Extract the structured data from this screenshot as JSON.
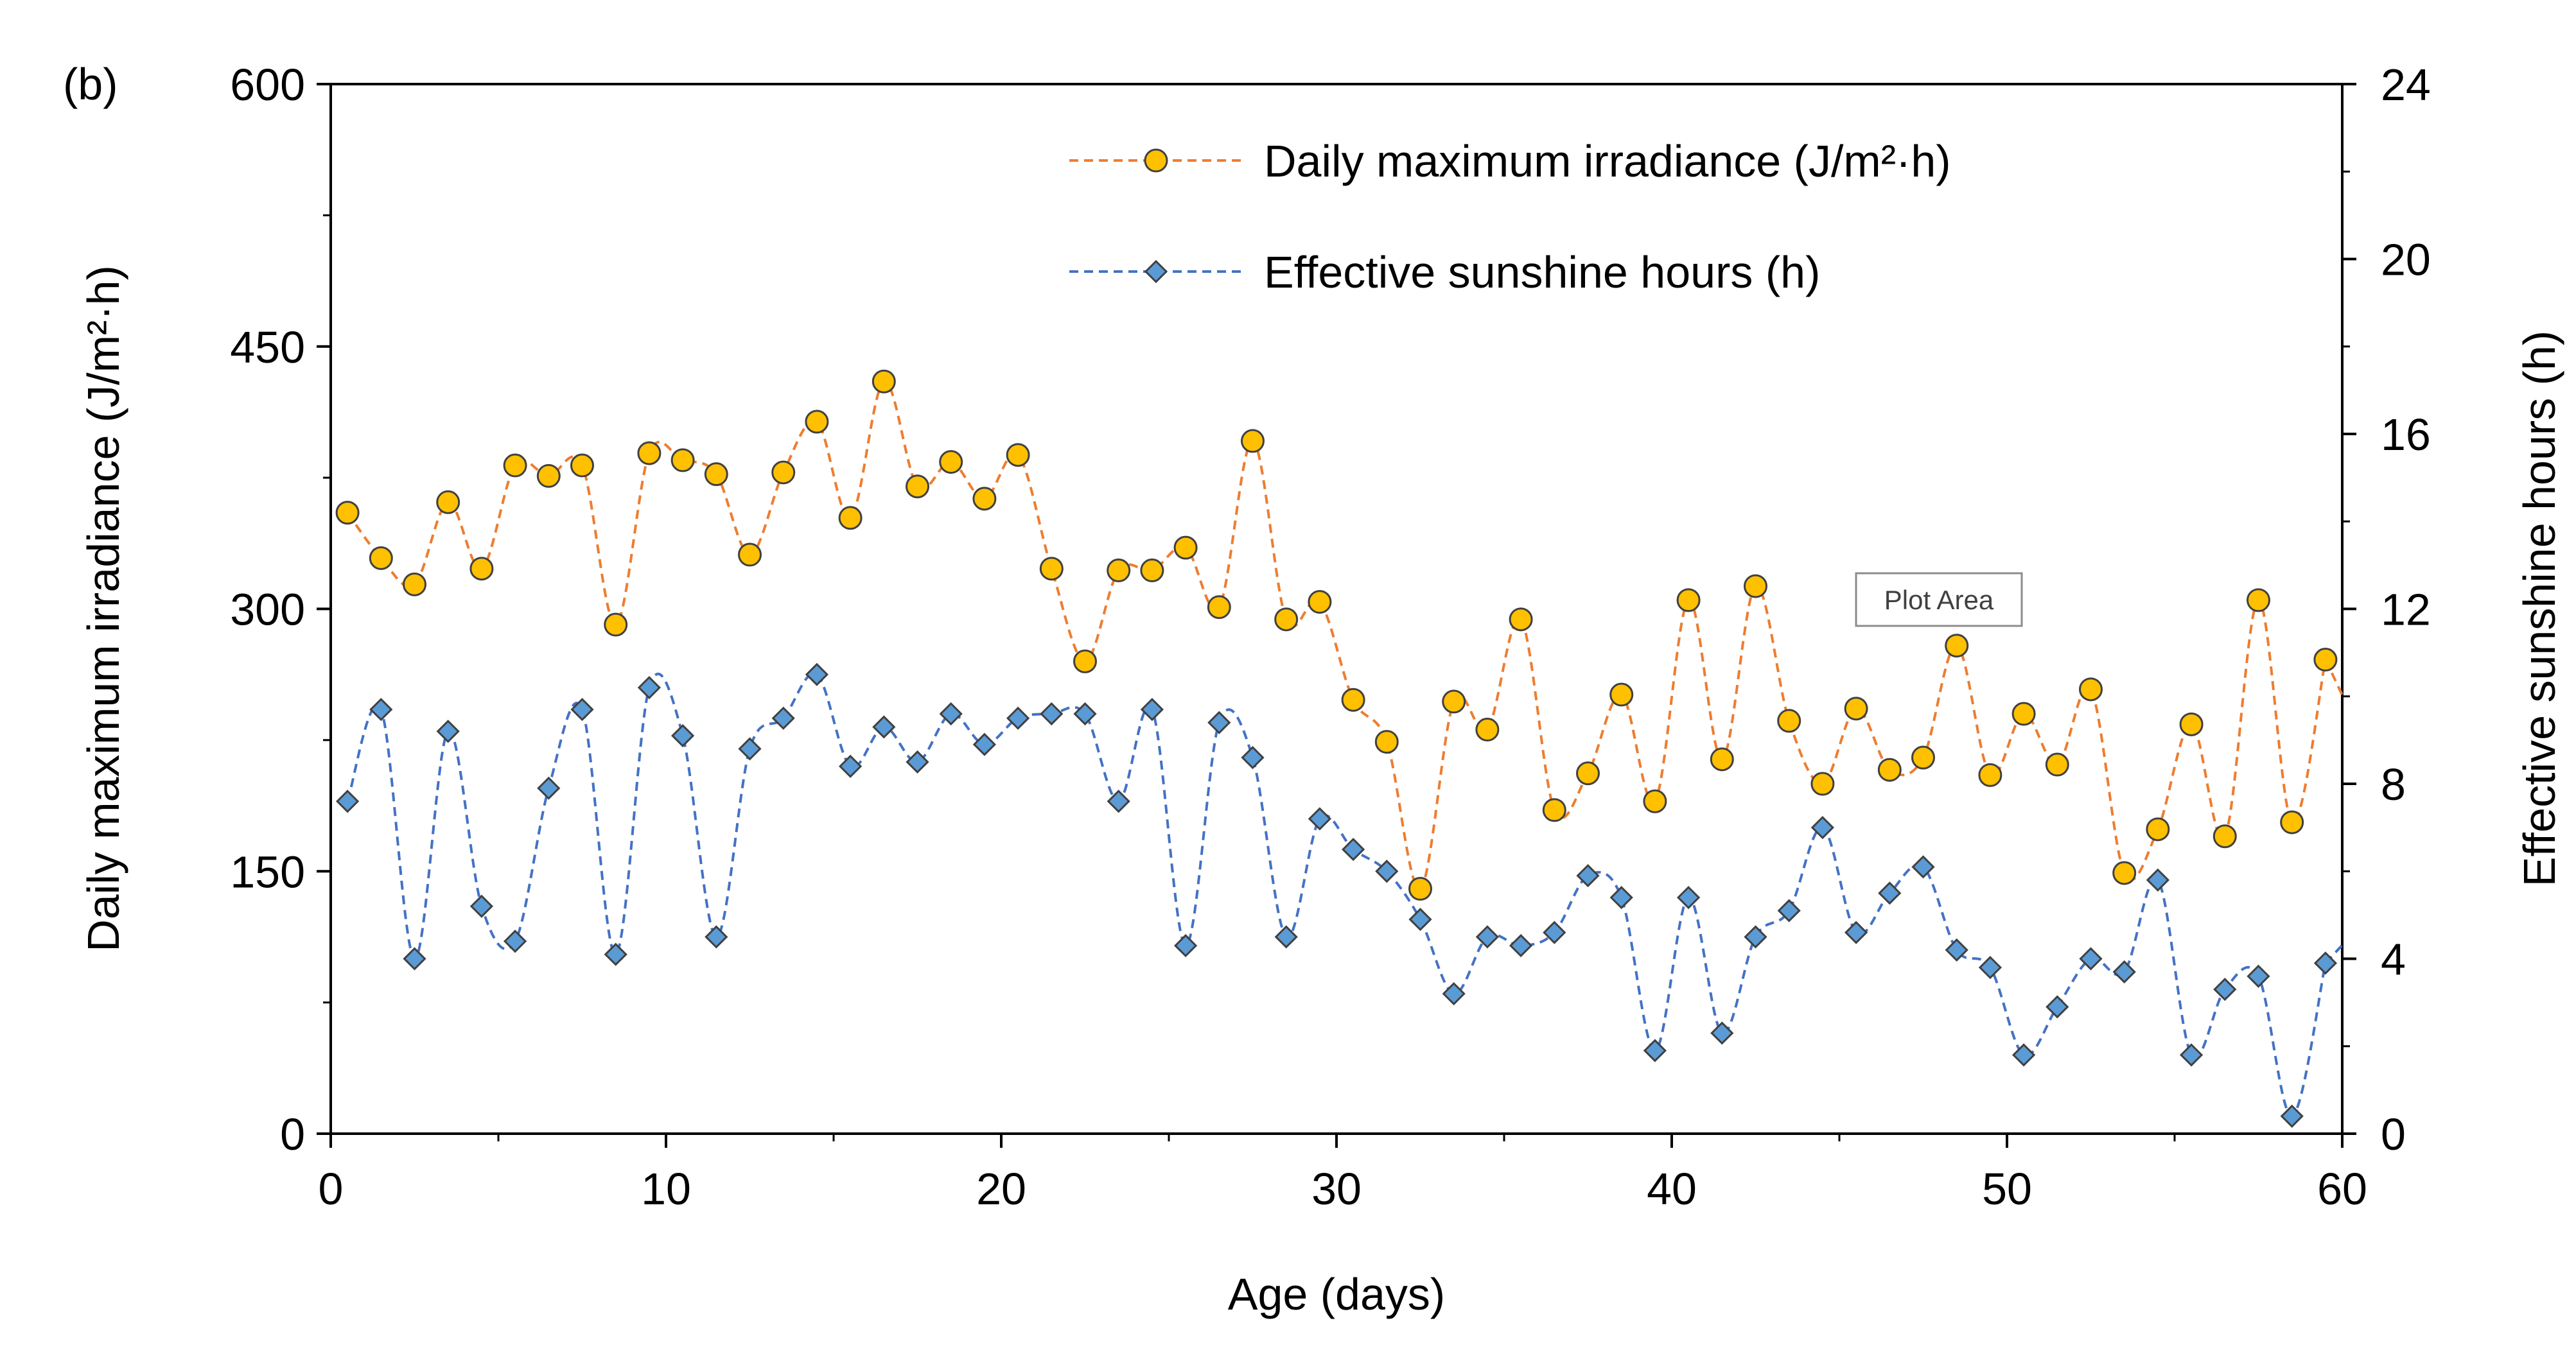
{
  "chart_data": {
    "type": "line",
    "panel_label": "(b)",
    "xlabel": "Age (days)",
    "ylabel_left": "Daily maximum irradiance (J/m²·h)",
    "ylabel_right": "Effective sunshine hours (h)",
    "xlim": [
      0,
      60
    ],
    "ylim_left": [
      0,
      600
    ],
    "ylim_right": [
      0,
      24
    ],
    "x_ticks": [
      0,
      10,
      20,
      30,
      40,
      50,
      60
    ],
    "y_ticks_left": [
      0,
      150,
      300,
      450,
      600
    ],
    "y_ticks_right": [
      0,
      4,
      8,
      12,
      16,
      20,
      24
    ],
    "grid": false,
    "legend_position": "top-right",
    "tooltip": "Plot Area",
    "series": [
      {
        "name": "Daily maximum irradiance",
        "legend_label": "Daily maximum irradiance  (J/m²·h)",
        "axis": "left",
        "color": "#ED7D31",
        "marker_fill": "#FFC000",
        "marker": "circle",
        "x": [
          0.5,
          1.5,
          2.5,
          3.5,
          4.5,
          5.5,
          6.5,
          7.5,
          8.5,
          9.5,
          10.5,
          11.5,
          12.5,
          13.5,
          14.5,
          15.5,
          16.5,
          17.5,
          18.5,
          19.5,
          20.5,
          21.5,
          22.5,
          23.5,
          24.5,
          25.5,
          26.5,
          27.5,
          28.5,
          29.5,
          30.5,
          31.5,
          32.5,
          33.5,
          34.5,
          35.5,
          36.5,
          37.5,
          38.5,
          39.5,
          40.5,
          41.5,
          42.5,
          43.5,
          44.5,
          45.5,
          46.5,
          47.5,
          48.5,
          49.5,
          50.5,
          51.5,
          52.5,
          53.5,
          54.5,
          55.5,
          56.5,
          57.5,
          58.5,
          59.5
        ],
        "values": [
          355,
          329,
          314,
          361,
          323,
          382,
          376,
          382,
          291,
          389,
          385,
          377,
          331,
          378,
          407,
          352,
          430,
          370,
          384,
          363,
          388,
          323,
          270,
          322,
          322,
          335,
          301,
          396,
          294,
          304,
          248,
          224,
          140,
          247,
          231,
          294,
          185,
          206,
          251,
          190,
          305,
          214,
          313,
          236,
          200,
          243,
          208,
          215,
          279,
          205,
          240,
          211,
          254,
          149,
          174,
          234,
          170,
          305,
          178,
          271
        ]
      },
      {
        "name": "Effective sunshine hours",
        "legend_label": "Effective sunshine hours (h)",
        "axis": "right",
        "color": "#4472C4",
        "marker_fill": "#5B9BD5",
        "marker": "diamond",
        "x": [
          0.5,
          1.5,
          2.5,
          3.5,
          4.5,
          5.5,
          6.5,
          7.5,
          8.5,
          9.5,
          10.5,
          11.5,
          12.5,
          13.5,
          14.5,
          15.5,
          16.5,
          17.5,
          18.5,
          19.5,
          20.5,
          21.5,
          22.5,
          23.5,
          24.5,
          25.5,
          26.5,
          27.5,
          28.5,
          29.5,
          30.5,
          31.5,
          32.5,
          33.5,
          34.5,
          35.5,
          36.5,
          37.5,
          38.5,
          39.5,
          40.5,
          41.5,
          42.5,
          43.5,
          44.5,
          45.5,
          46.5,
          47.5,
          48.5,
          49.5,
          50.5,
          51.5,
          52.5,
          53.5,
          54.5,
          55.5,
          56.5,
          57.5,
          58.5,
          59.5
        ],
        "values": [
          7.6,
          9.7,
          4.0,
          9.2,
          5.2,
          4.4,
          7.9,
          9.7,
          4.1,
          10.2,
          9.1,
          4.5,
          8.8,
          9.5,
          10.5,
          8.4,
          9.3,
          8.5,
          9.6,
          8.9,
          9.5,
          9.6,
          9.6,
          7.6,
          9.7,
          4.3,
          9.4,
          8.6,
          4.5,
          7.2,
          6.5,
          6.0,
          4.9,
          3.2,
          4.5,
          4.3,
          4.6,
          5.9,
          5.4,
          1.9,
          5.4,
          2.3,
          4.5,
          5.1,
          7.0,
          4.6,
          5.5,
          6.1,
          4.2,
          3.8,
          1.8,
          2.9,
          4.0,
          3.7,
          5.8,
          1.8,
          3.3,
          3.6,
          0.4,
          3.9
        ]
      }
    ]
  }
}
